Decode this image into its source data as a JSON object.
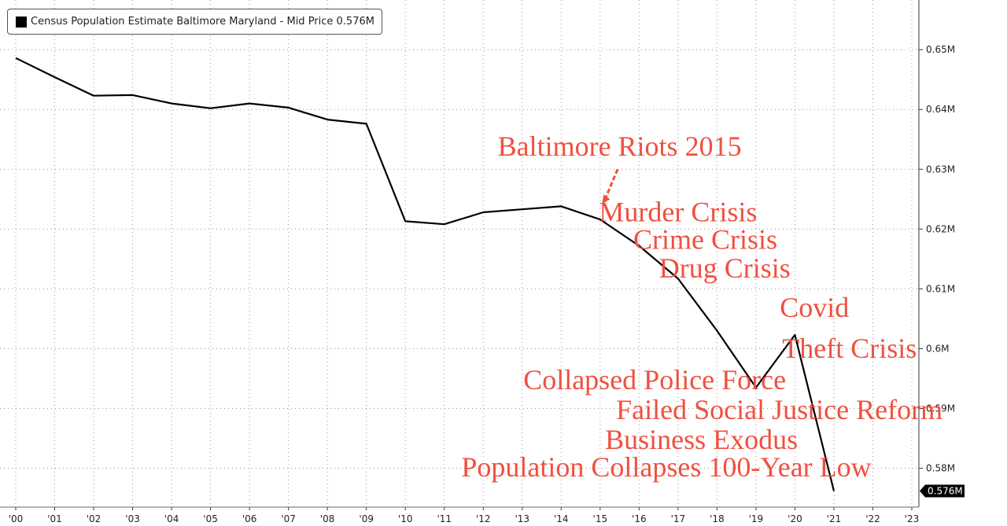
{
  "legend": {
    "label": "Census Population Estimate Baltimore Maryland - Mid Price 0.576M"
  },
  "colors": {
    "line": "#000000",
    "annotation": "#f0503f",
    "grid": "#9a9a9a",
    "last_value_bg": "#000000"
  },
  "chart_data": {
    "type": "line",
    "series": [
      {
        "name": "Census Population Estimate Baltimore Maryland",
        "x": [
          2000,
          2001,
          2002,
          2003,
          2004,
          2005,
          2006,
          2007,
          2008,
          2009,
          2010,
          2011,
          2012,
          2013,
          2014,
          2015,
          2016,
          2017,
          2018,
          2019,
          2020,
          2021
        ],
        "values": [
          0.6486,
          0.6454,
          0.6423,
          0.6424,
          0.641,
          0.6402,
          0.641,
          0.6403,
          0.6383,
          0.6376,
          0.6213,
          0.6208,
          0.6228,
          0.6233,
          0.6238,
          0.6216,
          0.6172,
          0.6117,
          0.603,
          0.5935,
          0.6023,
          0.5762
        ]
      }
    ],
    "x_ticks": [
      "'00",
      "'01",
      "'02",
      "'03",
      "'04",
      "'05",
      "'06",
      "'07",
      "'08",
      "'09",
      "'10",
      "'11",
      "'12",
      "'13",
      "'14",
      "'15",
      "'16",
      "'17",
      "'18",
      "'19",
      "'20",
      "'21",
      "'22",
      "'23"
    ],
    "y_ticks": [
      {
        "value": 0.65,
        "label": "0.65M"
      },
      {
        "value": 0.64,
        "label": "0.64M"
      },
      {
        "value": 0.63,
        "label": "0.63M"
      },
      {
        "value": 0.62,
        "label": "0.62M"
      },
      {
        "value": 0.61,
        "label": "0.61M"
      },
      {
        "value": 0.6,
        "label": "0.6M"
      },
      {
        "value": 0.59,
        "label": "0.59M"
      },
      {
        "value": 0.58,
        "label": "0.58M"
      }
    ],
    "xlim": [
      2000,
      2023
    ],
    "ylim": [
      0.5735,
      0.6583
    ],
    "last_value_label": "0.576M",
    "annotations": [
      {
        "text": "Baltimore Riots 2015",
        "x": 2015.5,
        "y": 0.6323
      },
      {
        "text": "Murder Crisis",
        "x": 2017.0,
        "y": 0.6213
      },
      {
        "text": "Crime Crisis",
        "x": 2017.7,
        "y": 0.6167
      },
      {
        "text": "Drug Crisis",
        "x": 2018.2,
        "y": 0.6119
      },
      {
        "text": "Covid",
        "x": 2020.5,
        "y": 0.6053
      },
      {
        "text": "Theft Crisis",
        "x": 2021.4,
        "y": 0.5985
      },
      {
        "text": "Collapsed Police Force",
        "x": 2016.4,
        "y": 0.5932
      },
      {
        "text": "Failed Social Justice Reform",
        "x": 2019.6,
        "y": 0.5882
      },
      {
        "text": "Business Exodus",
        "x": 2017.6,
        "y": 0.5832
      },
      {
        "text": "Population Collapses 100-Year Low",
        "x": 2016.7,
        "y": 0.5786
      }
    ]
  }
}
